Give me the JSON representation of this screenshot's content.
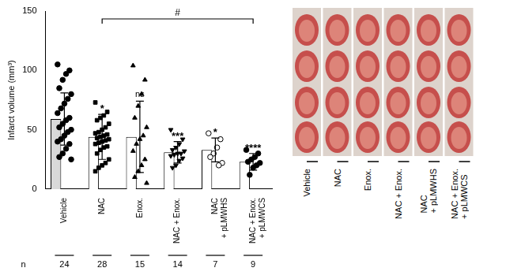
{
  "chart_data": {
    "type": "bar",
    "categories": [
      "Vehicle",
      "NAC",
      "Enox.",
      "NAC + Enox.",
      "NAC + pLMWHS",
      "NAC + Enox. + pLMWCS"
    ],
    "values": [
      59,
      44,
      44,
      31,
      33,
      23
    ],
    "errors": [
      22,
      19,
      30,
      9,
      10,
      7
    ],
    "colors": [
      "#d9d9d9",
      "#ffffff",
      "#ffffff",
      "#ffffff",
      "#ffffff",
      "#ffffff"
    ],
    "ylabel": "Infarct volume (mm³)",
    "ylim": [
      0,
      150
    ],
    "yticks": [
      0,
      50,
      100,
      150
    ],
    "grid": false,
    "points": [
      {
        "marker": "circle",
        "color": "#000000",
        "values": [
          105,
          100,
          97,
          92,
          85,
          80,
          76,
          72,
          68,
          64,
          60,
          58,
          55,
          52,
          50,
          48,
          45,
          42,
          40,
          38,
          34,
          30,
          27,
          25
        ]
      },
      {
        "marker": "square",
        "color": "#000000",
        "values": [
          73,
          65,
          62,
          60,
          58,
          55,
          52,
          50,
          48,
          47,
          46,
          45,
          44,
          43,
          42,
          41,
          40,
          39,
          38,
          36,
          35,
          33,
          30,
          25,
          22,
          20,
          18,
          15
        ]
      },
      {
        "marker": "triangle",
        "color": "#000000",
        "values": [
          104,
          92,
          80,
          70,
          60,
          52,
          45,
          42,
          38,
          32,
          25,
          20,
          15,
          10,
          5
        ]
      },
      {
        "marker": "triangle-down",
        "color": "#000000",
        "values": [
          50,
          42,
          38,
          35,
          33,
          32,
          30,
          30,
          29,
          28,
          26,
          24,
          20,
          18
        ]
      },
      {
        "marker": "circle",
        "color": "#ffffff",
        "values": [
          47,
          42,
          35,
          30,
          27,
          22,
          20
        ]
      },
      {
        "marker": "circle",
        "color": "#000000",
        "values": [
          33,
          30,
          27,
          25,
          23,
          22,
          20,
          18,
          12
        ]
      }
    ],
    "significance": [
      null,
      "*",
      "ns",
      "***",
      "*",
      "****"
    ],
    "comparison": {
      "from": "NAC",
      "to": "NAC + Enox. + pLMWCS",
      "label": "#"
    },
    "n": {
      "label": "n",
      "values": [
        24,
        28,
        15,
        14,
        7,
        9
      ]
    }
  },
  "image_panel": {
    "labels": [
      "Vehicle",
      "NAC",
      "Enox.",
      "NAC + Enox.",
      "NAC + pLMWHS",
      "NAC + Enox. + pLMWCS"
    ]
  }
}
